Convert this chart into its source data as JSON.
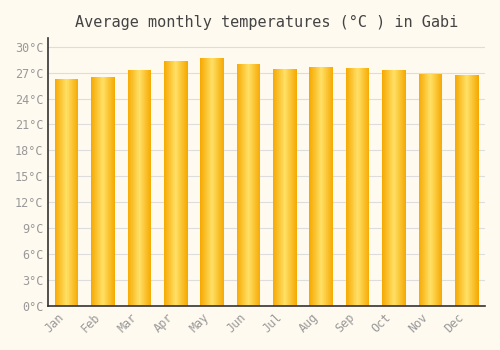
{
  "title": "Average monthly temperatures (°C ) in Gabi",
  "months": [
    "Jan",
    "Feb",
    "Mar",
    "Apr",
    "May",
    "Jun",
    "Jul",
    "Aug",
    "Sep",
    "Oct",
    "Nov",
    "Dec"
  ],
  "values": [
    26.3,
    26.5,
    27.3,
    28.3,
    28.7,
    28.0,
    27.4,
    27.6,
    27.5,
    27.3,
    26.9,
    26.7
  ],
  "bar_color_main": "#F5A800",
  "bar_color_light": "#FFE066",
  "background_color": "#FFFAF0",
  "grid_color": "#DDDDDD",
  "ytick_step": 3,
  "ymin": 0,
  "ymax": 30,
  "ylabel_suffix": "°C",
  "title_fontsize": 11,
  "tick_fontsize": 8.5,
  "text_color": "#999999",
  "font_family": "monospace"
}
